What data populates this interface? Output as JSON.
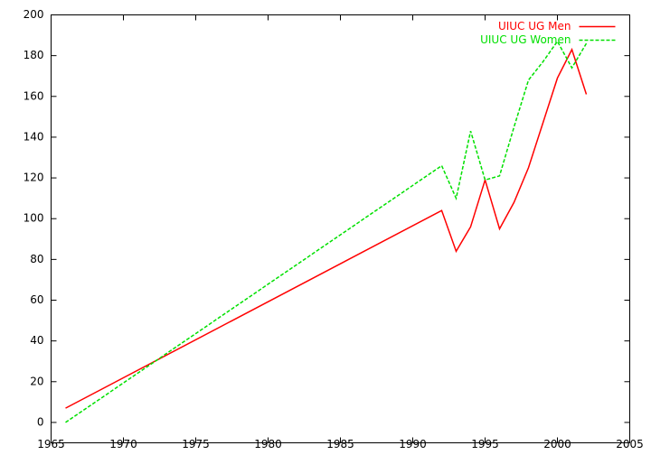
{
  "chart_data": {
    "type": "line",
    "x": [
      1966,
      1992,
      1993,
      1994,
      1995,
      1996,
      1997,
      1998,
      1999,
      2000,
      2001,
      2002
    ],
    "series": [
      {
        "name": "UIUC UG Men",
        "color": "#ff0000",
        "style": "solid",
        "values": [
          7,
          104,
          84,
          96,
          119,
          95,
          108,
          125,
          147,
          169,
          183,
          161
        ]
      },
      {
        "name": "UIUC UG Women",
        "color": "#00e000",
        "style": "dashed",
        "values": [
          0,
          126,
          110,
          143,
          119,
          121,
          145,
          168,
          177,
          187,
          174,
          186
        ]
      }
    ],
    "xlim": [
      1965,
      2005
    ],
    "xticks": [
      1965,
      1970,
      1975,
      1980,
      1985,
      1990,
      1995,
      2000,
      2005
    ],
    "ylim": [
      -10,
      200
    ],
    "yticks": [
      0,
      20,
      40,
      60,
      80,
      100,
      120,
      140,
      160,
      180,
      200
    ],
    "grid": false,
    "legend": "top-right"
  }
}
